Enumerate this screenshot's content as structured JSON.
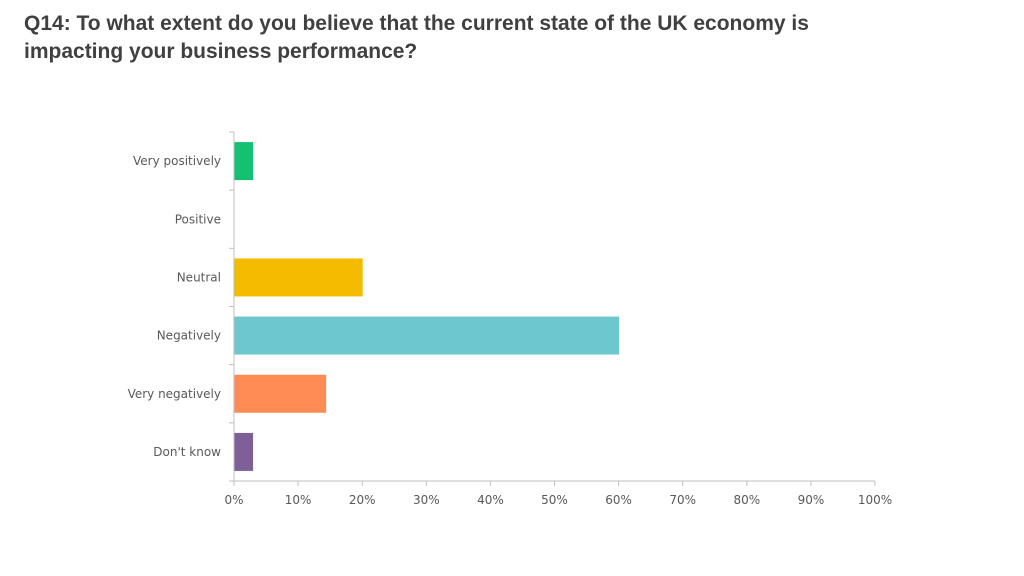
{
  "title": {
    "line1": "Q14: To what extent do you believe that the current state of the UK economy is",
    "line2": "impacting your business performance?"
  },
  "chart_data": {
    "type": "bar",
    "orientation": "horizontal",
    "categories": [
      "Very positively",
      "Positive",
      "Neutral",
      "Negatively",
      "Very negatively",
      "Don't know"
    ],
    "values": [
      2.9,
      0,
      20,
      60,
      14.3,
      2.9
    ],
    "colors": [
      "#14C172",
      "#14C172",
      "#F5BB00",
      "#6CC8CE",
      "#FF8C55",
      "#7E5F98"
    ],
    "xlim": [
      0,
      100
    ],
    "xticks": [
      "0%",
      "10%",
      "20%",
      "30%",
      "40%",
      "50%",
      "60%",
      "70%",
      "80%",
      "90%",
      "100%"
    ],
    "grid": false,
    "legend": "none"
  }
}
